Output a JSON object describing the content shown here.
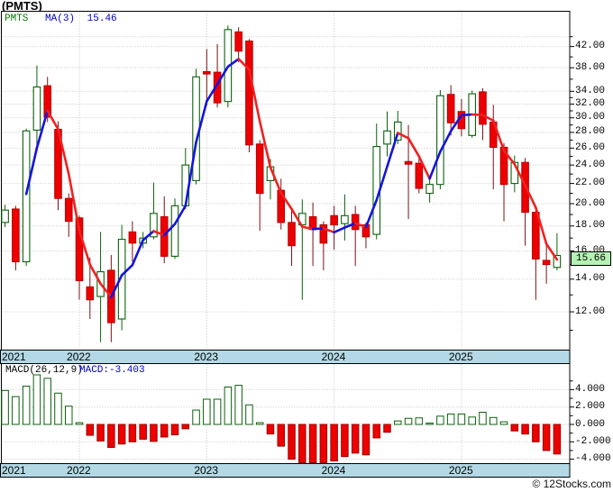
{
  "title": "(PMTS)",
  "price_panel": {
    "legend": {
      "symbol": "PMTS",
      "ma_label": "MA(3)",
      "ma_value": "15.46"
    },
    "y_axis_labels": [
      "42.00",
      "38.00",
      "34.00",
      "32.00",
      "30.00",
      "28.00",
      "26.00",
      "24.00",
      "22.00",
      "20.00",
      "18.00",
      "16.00",
      "14.00",
      "12.00"
    ],
    "last_price": "15.66"
  },
  "macd_panel": {
    "legend_left": "MACD(26,12,9)",
    "legend_right": "MACD:-3.403",
    "y_axis_labels": [
      "4.000",
      "2.000",
      "0.000",
      "-2.000",
      "-4.000"
    ]
  },
  "x_axis": {
    "years": [
      "2021",
      "2022",
      "2023",
      "2024",
      "2025"
    ]
  },
  "watermark": "© 12Stocks.com",
  "colors": {
    "up_candle": "#0d600d",
    "down_candle": "#ee0000",
    "down_wick": "#7a1212",
    "ma_rising": "#1414dd",
    "ma_falling": "#ee2222",
    "year_band": "#b3d9e6",
    "last_price_bg": "#b4f2b4",
    "gridline": "#c3c3c3"
  },
  "chart_data": {
    "type": "candlestick",
    "symbol": "PMTS",
    "title": "(PMTS)",
    "ma_period": 3,
    "ma_last_value": 15.46,
    "macd_params": [
      26,
      12,
      9
    ],
    "macd_label_value": -3.403,
    "last_close": 15.66,
    "price_axis_scale": "log",
    "price_axis_ticks": [
      42,
      38,
      34,
      32,
      30,
      28,
      26,
      24,
      22,
      20,
      18,
      16,
      14,
      12
    ],
    "macd_axis_ticks": [
      4,
      2,
      0,
      -2,
      -4
    ],
    "years": [
      "2021",
      "2022",
      "2023",
      "2024",
      "2025"
    ],
    "months": [
      "2021-06",
      "2021-07",
      "2021-08",
      "2021-09",
      "2021-10",
      "2021-11",
      "2021-12",
      "2022-01",
      "2022-02",
      "2022-03",
      "2022-04",
      "2022-05",
      "2022-06",
      "2022-07",
      "2022-08",
      "2022-09",
      "2022-10",
      "2022-11",
      "2022-12",
      "2023-01",
      "2023-02",
      "2023-03",
      "2023-04",
      "2023-05",
      "2023-06",
      "2023-07",
      "2023-08",
      "2023-09",
      "2023-10",
      "2023-11",
      "2023-12",
      "2024-01",
      "2024-02",
      "2024-03",
      "2024-04",
      "2024-05",
      "2024-06",
      "2024-07",
      "2024-08",
      "2024-09",
      "2024-10",
      "2024-11",
      "2024-12",
      "2025-01",
      "2025-02",
      "2025-03",
      "2025-04",
      "2025-05",
      "2025-06",
      "2025-07",
      "2025-08",
      "2025-09",
      "2025-10"
    ],
    "ohlc": [
      [
        18.3,
        19.9,
        17.9,
        19.4
      ],
      [
        19.5,
        19.8,
        14.6,
        15.2
      ],
      [
        15.2,
        28.5,
        14.9,
        28.2
      ],
      [
        28.3,
        38.4,
        25.5,
        34.7
      ],
      [
        34.9,
        36.4,
        29.4,
        30.1
      ],
      [
        28.4,
        29.5,
        19.4,
        20.5
      ],
      [
        20.5,
        21.0,
        17.1,
        18.4
      ],
      [
        18.7,
        18.9,
        12.7,
        13.9
      ],
      [
        13.5,
        15.5,
        11.6,
        12.7
      ],
      [
        12.9,
        17.5,
        10.4,
        14.5
      ],
      [
        14.6,
        15.7,
        10.4,
        11.4
      ],
      [
        11.6,
        18.1,
        11.0,
        16.9
      ],
      [
        17.5,
        18.4,
        15.2,
        16.6
      ],
      [
        16.6,
        17.5,
        16.2,
        17.0
      ],
      [
        17.1,
        22.1,
        16.9,
        19.1
      ],
      [
        18.8,
        20.7,
        15.1,
        15.6
      ],
      [
        15.6,
        20.5,
        15.4,
        19.8
      ],
      [
        19.8,
        26.0,
        19.5,
        24.0
      ],
      [
        22.3,
        37.8,
        21.9,
        36.4
      ],
      [
        37.3,
        41.5,
        31.8,
        36.9
      ],
      [
        37.2,
        42.5,
        31.5,
        32.2
      ],
      [
        32.4,
        46.4,
        31.5,
        45.5
      ],
      [
        45.0,
        46.0,
        39.0,
        41.1
      ],
      [
        43.1,
        43.5,
        25.5,
        26.4
      ],
      [
        26.5,
        27.0,
        17.6,
        21.0
      ],
      [
        22.3,
        24.7,
        20.4,
        23.8
      ],
      [
        21.3,
        22.5,
        17.7,
        18.3
      ],
      [
        18.3,
        19.6,
        14.9,
        16.4
      ],
      [
        18.1,
        20.4,
        12.7,
        19.1
      ],
      [
        18.8,
        20.1,
        14.9,
        17.7
      ],
      [
        18.1,
        18.4,
        14.6,
        16.6
      ],
      [
        18.9,
        19.8,
        16.1,
        18.1
      ],
      [
        18.2,
        20.9,
        16.8,
        18.9
      ],
      [
        19.0,
        19.8,
        14.9,
        17.7
      ],
      [
        18.1,
        18.3,
        16.2,
        17.1
      ],
      [
        17.3,
        29.2,
        16.9,
        26.2
      ],
      [
        26.5,
        30.9,
        25.0,
        28.2
      ],
      [
        27.0,
        31.0,
        26.5,
        29.4
      ],
      [
        24.4,
        29.0,
        18.6,
        24.1
      ],
      [
        24.2,
        24.8,
        21.0,
        21.5
      ],
      [
        21.0,
        22.5,
        20.1,
        21.9
      ],
      [
        21.9,
        34.2,
        21.4,
        33.3
      ],
      [
        33.5,
        35.0,
        27.6,
        29.3
      ],
      [
        30.9,
        32.8,
        27.5,
        28.5
      ],
      [
        27.6,
        34.1,
        27.3,
        33.6
      ],
      [
        33.9,
        34.5,
        27.0,
        29.1
      ],
      [
        29.4,
        31.9,
        21.4,
        26.1
      ],
      [
        26.1,
        26.6,
        18.4,
        21.9
      ],
      [
        22.0,
        25.1,
        21.1,
        24.3
      ],
      [
        24.3,
        24.8,
        16.4,
        19.2
      ],
      [
        19.2,
        19.5,
        12.7,
        15.4
      ],
      [
        15.3,
        16.6,
        13.7,
        15.0
      ],
      [
        14.8,
        17.4,
        14.6,
        15.66
      ]
    ],
    "macd_histogram": [
      3.9,
      3.2,
      4.4,
      5.7,
      5.3,
      3.6,
      2.1,
      0.2,
      -1.25,
      -1.9,
      -2.65,
      -2.25,
      -2.0,
      -1.7,
      -1.95,
      -1.45,
      -1.2,
      -0.5,
      1.65,
      2.9,
      2.9,
      4.3,
      4.5,
      2.25,
      0.2,
      -1.1,
      -2.5,
      -4.0,
      -4.5,
      -4.6,
      -4.4,
      -4.2,
      -3.7,
      -3.3,
      -3.5,
      -1.55,
      -0.9,
      0.4,
      0.7,
      0.75,
      0.15,
      0.95,
      1.2,
      1.2,
      0.85,
      1.4,
      0.8,
      0.3,
      -0.75,
      -1.1,
      -2.0,
      -3.0,
      -3.4
    ]
  }
}
